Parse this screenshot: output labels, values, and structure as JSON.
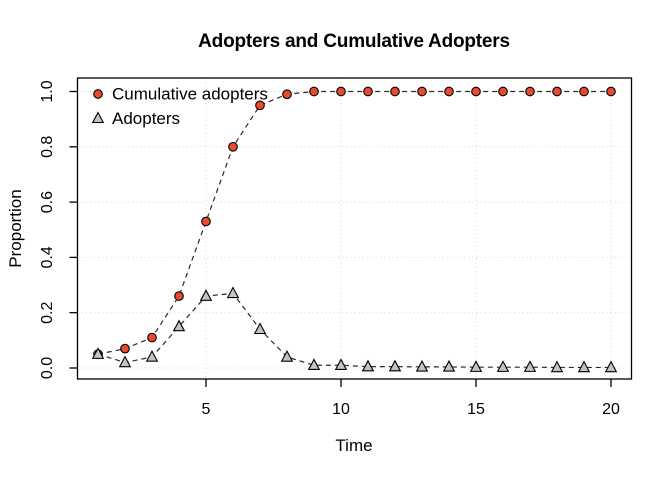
{
  "figure": {
    "title": "Adopters and Cumulative Adopters",
    "xlabel": "Time",
    "ylabel": "Proportion"
  },
  "chart_data": {
    "type": "line",
    "title": "Adopters and Cumulative Adopters",
    "xlabel": "Time",
    "ylabel": "Proportion",
    "xlim": [
      1,
      20
    ],
    "ylim": [
      0.0,
      1.0
    ],
    "grid": "dotted",
    "line_style": "dashed",
    "legend_position": "top-left",
    "x": [
      1,
      2,
      3,
      4,
      5,
      6,
      7,
      8,
      9,
      10,
      11,
      12,
      13,
      14,
      15,
      16,
      17,
      18,
      19,
      20
    ],
    "x_ticks": [
      5,
      10,
      15,
      20
    ],
    "x_tick_labels": [
      "5",
      "10",
      "15",
      "20"
    ],
    "y_ticks": [
      0.0,
      0.2,
      0.4,
      0.6,
      0.8,
      1.0
    ],
    "y_tick_labels": [
      "0.0",
      "0.2",
      "0.4",
      "0.6",
      "0.8",
      "1.0"
    ],
    "series": [
      {
        "name": "Cumulative adopters",
        "marker": "circle",
        "marker_color": "#e9492f",
        "line_color": "#2b2b2b",
        "values": [
          0.05,
          0.07,
          0.11,
          0.26,
          0.53,
          0.8,
          0.95,
          0.99,
          1.0,
          1.0,
          1.0,
          1.0,
          1.0,
          1.0,
          1.0,
          1.0,
          1.0,
          1.0,
          1.0,
          1.0
        ]
      },
      {
        "name": "Adopters",
        "marker": "triangle",
        "marker_color": "#c3c3c3",
        "line_color": "#2b2b2b",
        "values": [
          0.05,
          0.02,
          0.04,
          0.15,
          0.26,
          0.27,
          0.14,
          0.04,
          0.01,
          0.01,
          0.005,
          0.005,
          0.004,
          0.004,
          0.003,
          0.003,
          0.003,
          0.002,
          0.002,
          0.002
        ]
      }
    ],
    "colors": {
      "grid": "#d4d4d4",
      "axis": "#000000",
      "background": "#ffffff"
    }
  }
}
